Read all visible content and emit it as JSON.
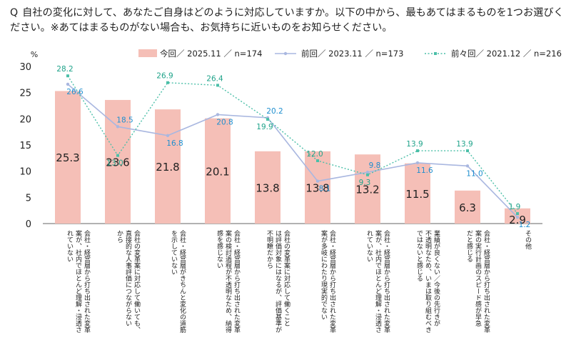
{
  "question": {
    "prefix": "Q",
    "text": "自社の変化に対して、あなたご自身はどのように対応していますか。以下の中から、最もあてはまるものを1つお選びください。※あてはまるものがない場合も、お気持ちに近いものをお知らせください。"
  },
  "colors": {
    "bar": "#f5bfb7",
    "line_prev": "#a9b7e0",
    "line_prev2": "#4bbfa8",
    "label_prev": "#1f8fcf",
    "label_prev2": "#1fa38a"
  },
  "chart_data": {
    "type": "bar",
    "title": "",
    "ylabel": "%",
    "ylim": [
      0,
      30
    ],
    "yticks": [
      0,
      5,
      10,
      15,
      20,
      25,
      30
    ],
    "legend_position": "top",
    "categories": [
      "会社・経営層から打ち出された変革\n案が、社内でほとんど理解・浸透さ\nれていない",
      "会社の変革案に対応して働いても、\n直接的な人事評価につながらない\nから",
      "会社・経営層がきちんと変化の道筋\nを示していない",
      "会社・経営層から打ち出された変革\n案の検討過程が不透明なため、納得\n感を感じない",
      "会社の変革案に対応して働くこと\nは評価対象にはなるが、評価基準が\n不明瞭だから",
      "会社・経営層から打ち出された変革\n案が多岐にわたり現実的でない",
      "会社・経営層から打ち出された変革\n案が、社内でほとんど理解・浸透さ\nれていない",
      "業績が良くない／今後の先行きが\n不透明なため、いまは取り組むべき\nではないと感じる",
      "会社・経営層から打ち出された変革\n案の実行計画のスピード感が早急\nだと感じる",
      "その他"
    ],
    "series": [
      {
        "name": "今回／ 2025.11 ／ n=174",
        "kind": "bar",
        "values": [
          25.3,
          23.6,
          21.8,
          20.1,
          13.8,
          13.8,
          13.2,
          11.5,
          6.3,
          2.9
        ]
      },
      {
        "name": "前回／ 2023.11 ／ n=173",
        "kind": "line",
        "values": [
          26.6,
          18.5,
          16.8,
          20.8,
          20.2,
          8.1,
          9.8,
          11.6,
          11.0,
          1.2
        ]
      },
      {
        "name": "前々回／ 2021.12 ／ n=216",
        "kind": "line-dotted",
        "values": [
          28.2,
          13.0,
          26.9,
          26.4,
          19.9,
          12.0,
          9.3,
          13.9,
          13.9,
          1.9
        ]
      }
    ]
  }
}
